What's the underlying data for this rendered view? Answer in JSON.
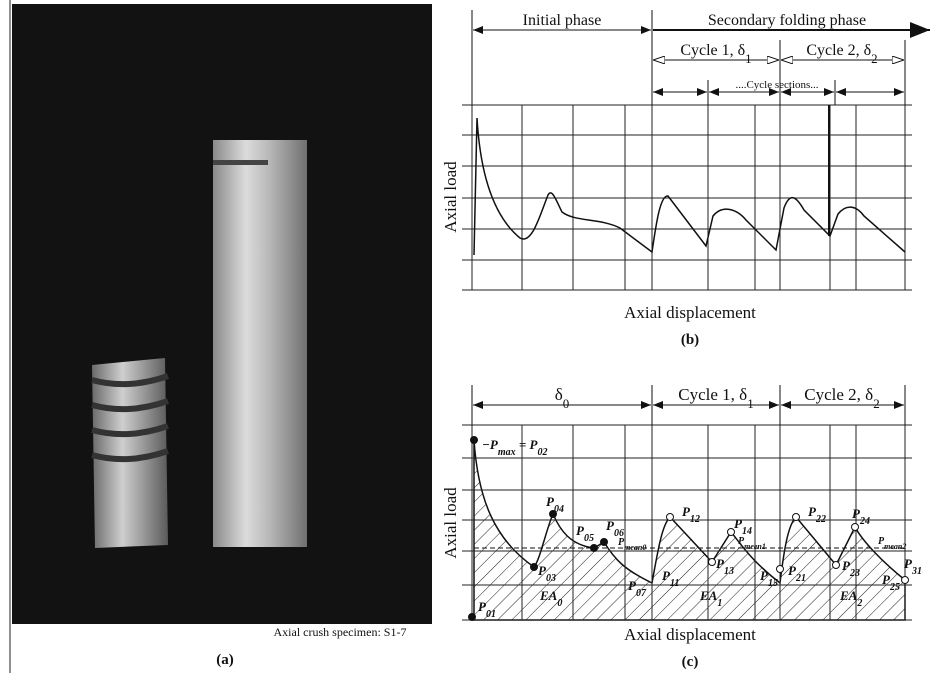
{
  "panel_a": {
    "caption": "Axial crush specimen: S1-7",
    "label": "(a)"
  },
  "panel_b": {
    "phases": [
      "Initial phase",
      "Secondary folding phase"
    ],
    "cycles": [
      [
        "Cycle 1,  δ",
        "1"
      ],
      [
        "Cycle 2,  δ",
        "2"
      ]
    ],
    "cycle_sections": "....Cycle sections...",
    "y_label": "Axial load",
    "x_label": "Axial displacement",
    "label": "(b)"
  },
  "panel_c": {
    "phases": [
      [
        "δ",
        "0"
      ],
      [
        "Cycle 1,  δ",
        "1"
      ],
      [
        "Cycle 2,  δ",
        "2"
      ]
    ],
    "points": [
      [
        "−P",
        "max",
        " = P",
        "02"
      ],
      [
        "P",
        "04"
      ],
      [
        "P",
        "05"
      ],
      [
        "P",
        "06"
      ],
      [
        "P",
        "mean0"
      ],
      [
        "P",
        "03"
      ],
      [
        "P",
        "07"
      ],
      [
        "P",
        "01"
      ],
      [
        "P",
        "12"
      ],
      [
        "P",
        "14"
      ],
      [
        "P",
        "meen1"
      ],
      [
        "P",
        "13"
      ],
      [
        "P",
        "15"
      ],
      [
        "P",
        "11"
      ],
      [
        "P",
        "22"
      ],
      [
        "P",
        "24"
      ],
      [
        "P",
        "mean2"
      ],
      [
        "P",
        "21"
      ],
      [
        "P",
        "23"
      ],
      [
        "P",
        "25"
      ],
      [
        "P",
        "31"
      ]
    ],
    "areas": [
      [
        "EA",
        "0"
      ],
      [
        "EA",
        "1"
      ],
      [
        "EA",
        "2"
      ]
    ],
    "y_label": "Axial load",
    "x_label": "Axial displacement",
    "label": "(c)"
  }
}
